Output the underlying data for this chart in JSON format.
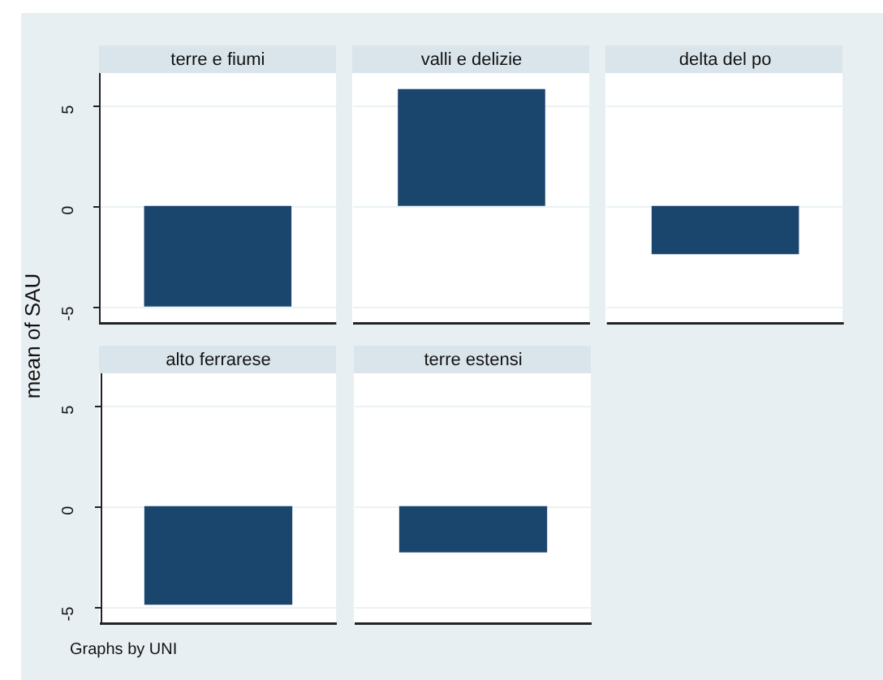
{
  "chart_data": [
    {
      "type": "bar",
      "ylabel": "mean of SAU",
      "categories": [
        "terre e fiumi",
        "valli e delizie",
        "delta del po"
      ],
      "values": [
        -5.0,
        5.8,
        -2.4
      ],
      "color": "#1a466e",
      "ylim": [
        -5.9,
        6.6
      ],
      "yticks": [
        -5,
        0,
        5
      ],
      "grid": "y"
    },
    {
      "type": "bar",
      "categories": [
        "alto ferrarese",
        "terre estensi"
      ],
      "values": [
        -4.9,
        -2.3
      ],
      "color": "#1a466e",
      "ylim": [
        -5.9,
        6.6
      ],
      "yticks": [
        -5,
        0,
        5
      ],
      "grid": "y",
      "annotations": [
        "Graphs by UNI"
      ]
    }
  ]
}
